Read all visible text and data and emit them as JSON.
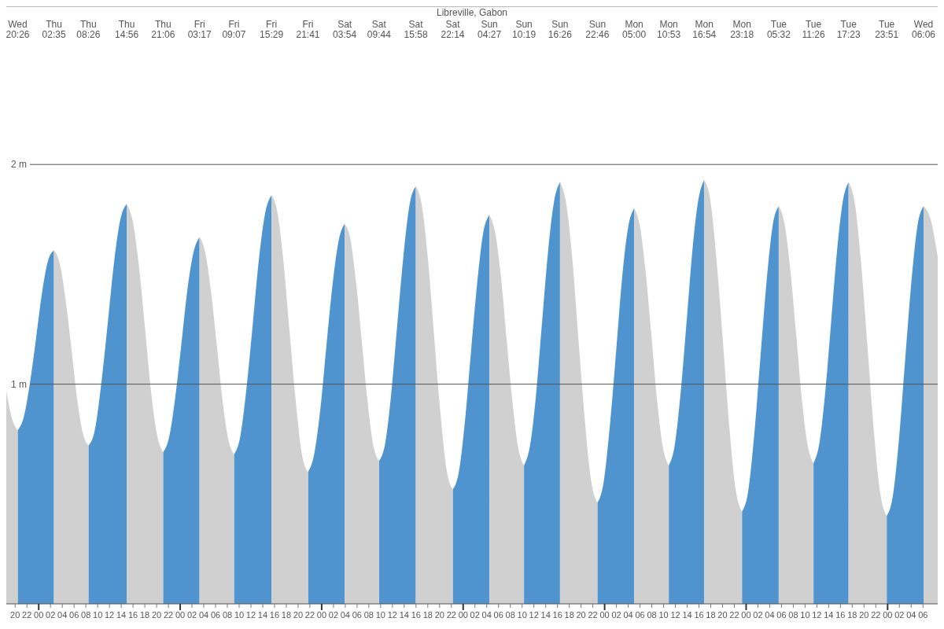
{
  "chart_data": {
    "type": "area",
    "title": "Libreville, Gabon",
    "x": [
      18.5,
      19.5,
      20.43,
      21.46,
      22.48,
      23.51,
      24.53,
      25.56,
      26.58,
      27.56,
      28.53,
      29.51,
      30.48,
      31.46,
      32.43,
      33.51,
      34.6,
      35.68,
      36.76,
      37.85,
      38.93,
      39.96,
      40.99,
      42.02,
      43.04,
      44.07,
      45.1,
      46.13,
      47.16,
      48.19,
      49.22,
      50.25,
      51.28,
      52.25,
      53.23,
      54.2,
      55.17,
      56.15,
      57.12,
      58.18,
      59.24,
      60.3,
      61.36,
      62.42,
      63.48,
      64.51,
      65.55,
      66.58,
      67.61,
      68.65,
      69.68,
      70.72,
      71.75,
      72.79,
      73.83,
      74.86,
      75.9,
      76.87,
      77.85,
      78.82,
      79.79,
      80.76,
      81.73,
      82.77,
      83.81,
      84.85,
      85.89,
      86.93,
      87.97,
      89.01,
      90.06,
      91.1,
      92.14,
      93.19,
      94.23,
      95.27,
      96.3,
      97.34,
      98.38,
      99.41,
      100.45,
      101.43,
      102.41,
      103.39,
      104.36,
      105.34,
      106.32,
      107.34,
      108.36,
      109.38,
      110.39,
      111.41,
      112.43,
      113.49,
      114.55,
      115.6,
      116.66,
      117.71,
      118.77,
      119.81,
      120.85,
      121.89,
      122.92,
      123.96,
      125,
      125.98,
      126.96,
      127.94,
      128.92,
      129.9,
      130.88,
      131.88,
      132.89,
      133.89,
      134.89,
      135.9,
      136.9,
      137.97,
      139.03,
      140.1,
      141.17,
      142.23,
      143.3,
      144.34,
      145.38,
      146.42,
      147.45,
      148.49,
      149.53,
      150.51,
      151.5,
      152.48,
      153.46,
      154.45,
      155.43,
      156.42,
      157.41,
      158.41,
      159.4,
      160.39,
      161.38,
      162.46,
      163.54,
      164.62,
      165.69,
      166.77,
      167.85,
      168.89,
      169.93,
      170.98,
      172.02,
      173.06,
      174.1,
      175.3,
      176.5
    ],
    "series": [
      {
        "color": "#4f94cf",
        "values": [
          null,
          null,
          0.79,
          0.85,
          1.0,
          1.2,
          1.41,
          1.56,
          1.61,
          null,
          null,
          null,
          null,
          null,
          0.72,
          0.79,
          1.0,
          1.27,
          1.55,
          1.75,
          1.82,
          null,
          null,
          null,
          null,
          null,
          0.69,
          0.76,
          0.94,
          1.18,
          1.43,
          1.6,
          1.67,
          null,
          null,
          null,
          null,
          null,
          0.68,
          0.76,
          0.98,
          1.27,
          1.57,
          1.78,
          1.86,
          null,
          null,
          null,
          null,
          null,
          0.6,
          0.68,
          0.88,
          1.17,
          1.45,
          1.65,
          1.73,
          null,
          null,
          null,
          null,
          null,
          0.65,
          0.73,
          0.96,
          1.28,
          1.59,
          1.82,
          1.9,
          null,
          null,
          null,
          null,
          null,
          0.52,
          0.6,
          0.83,
          1.15,
          1.46,
          1.69,
          1.77,
          null,
          null,
          null,
          null,
          null,
          0.63,
          0.72,
          0.95,
          1.28,
          1.6,
          1.83,
          1.92,
          null,
          null,
          null,
          null,
          null,
          0.46,
          0.55,
          0.8,
          1.13,
          1.47,
          1.71,
          1.8,
          null,
          null,
          null,
          null,
          null,
          0.63,
          0.72,
          0.96,
          1.28,
          1.61,
          1.84,
          1.93,
          null,
          null,
          null,
          null,
          null,
          0.42,
          0.51,
          0.77,
          1.12,
          1.46,
          1.72,
          1.81,
          null,
          null,
          null,
          null,
          null,
          0.64,
          0.73,
          0.96,
          1.28,
          1.6,
          1.83,
          1.92,
          null,
          null,
          null,
          null,
          null,
          0.4,
          0.49,
          0.75,
          1.11,
          1.46,
          1.72,
          1.81,
          null,
          null
        ]
      },
      {
        "color": "#d0d0d0",
        "values": [
          0.97,
          0.84,
          0.79,
          null,
          null,
          null,
          null,
          null,
          1.61,
          1.55,
          1.39,
          1.17,
          0.94,
          0.78,
          0.72,
          null,
          null,
          null,
          null,
          null,
          1.82,
          1.74,
          1.54,
          1.26,
          0.97,
          0.77,
          0.69,
          null,
          null,
          null,
          null,
          null,
          1.67,
          1.6,
          1.42,
          1.18,
          0.93,
          0.75,
          0.68,
          null,
          null,
          null,
          null,
          null,
          1.86,
          1.78,
          1.55,
          1.23,
          0.92,
          0.68,
          0.6,
          null,
          null,
          null,
          null,
          null,
          1.73,
          1.66,
          1.46,
          1.19,
          0.92,
          0.72,
          0.65,
          null,
          null,
          null,
          null,
          null,
          1.9,
          1.81,
          1.56,
          1.21,
          0.87,
          0.61,
          0.52,
          null,
          null,
          null,
          null,
          null,
          1.77,
          1.69,
          1.49,
          1.2,
          0.92,
          0.71,
          0.63,
          null,
          null,
          null,
          null,
          null,
          1.92,
          1.82,
          1.56,
          1.19,
          0.83,
          0.56,
          0.46,
          null,
          null,
          null,
          null,
          null,
          1.8,
          1.72,
          1.51,
          1.22,
          0.92,
          0.71,
          0.63,
          null,
          null,
          null,
          null,
          null,
          1.93,
          1.83,
          1.55,
          1.18,
          0.8,
          0.52,
          0.42,
          null,
          null,
          null,
          null,
          null,
          1.81,
          1.73,
          1.52,
          1.23,
          0.93,
          0.72,
          0.64,
          null,
          null,
          null,
          null,
          null,
          1.92,
          1.82,
          1.54,
          1.16,
          0.78,
          0.5,
          0.4,
          null,
          null,
          null,
          null,
          null,
          1.81,
          1.75,
          1.58
        ]
      }
    ],
    "annotations": [
      "Wed 20:26",
      "Thu 02:35",
      "Thu 08:26",
      "Thu 14:56",
      "Thu 21:06",
      "Fri 03:17",
      "Fri 09:07",
      "Fri 15:29",
      "Fri 21:41",
      "Sat 03:54",
      "Sat 09:44",
      "Sat 15:58",
      "Sat 22:14",
      "Sun 04:27",
      "Sun 10:19",
      "Sun 16:26",
      "Sun 22:46",
      "Mon 05:00",
      "Mon 10:53",
      "Mon 16:54",
      "Mon 23:18",
      "Tue 05:32",
      "Tue 11:26",
      "Tue 17:23",
      "Tue 23:51",
      "Wed 06:06"
    ],
    "xlim": [
      18.5,
      176.5
    ],
    "xticks": [
      {
        "value": 20,
        "label": "20"
      },
      {
        "value": 22,
        "label": "22"
      },
      {
        "value": 24,
        "label": "00"
      },
      {
        "value": 26,
        "label": "02"
      },
      {
        "value": 28,
        "label": "04"
      },
      {
        "value": 30,
        "label": "06"
      },
      {
        "value": 32,
        "label": "08"
      },
      {
        "value": 34,
        "label": "10"
      },
      {
        "value": 36,
        "label": "12"
      },
      {
        "value": 38,
        "label": "14"
      },
      {
        "value": 40,
        "label": "16"
      },
      {
        "value": 42,
        "label": "18"
      },
      {
        "value": 44,
        "label": "20"
      },
      {
        "value": 46,
        "label": "22"
      },
      {
        "value": 48,
        "label": "00"
      },
      {
        "value": 50,
        "label": "02"
      },
      {
        "value": 52,
        "label": "04"
      },
      {
        "value": 54,
        "label": "06"
      },
      {
        "value": 56,
        "label": "08"
      },
      {
        "value": 58,
        "label": "10"
      },
      {
        "value": 60,
        "label": "12"
      },
      {
        "value": 62,
        "label": "14"
      },
      {
        "value": 64,
        "label": "16"
      },
      {
        "value": 66,
        "label": "18"
      },
      {
        "value": 68,
        "label": "20"
      },
      {
        "value": 70,
        "label": "22"
      },
      {
        "value": 72,
        "label": "00"
      },
      {
        "value": 74,
        "label": "02"
      },
      {
        "value": 76,
        "label": "04"
      },
      {
        "value": 78,
        "label": "06"
      },
      {
        "value": 80,
        "label": "08"
      },
      {
        "value": 82,
        "label": "10"
      },
      {
        "value": 84,
        "label": "12"
      },
      {
        "value": 86,
        "label": "14"
      },
      {
        "value": 88,
        "label": "16"
      },
      {
        "value": 90,
        "label": "18"
      },
      {
        "value": 92,
        "label": "20"
      },
      {
        "value": 94,
        "label": "22"
      },
      {
        "value": 96,
        "label": "00"
      },
      {
        "value": 98,
        "label": "02"
      },
      {
        "value": 100,
        "label": "04"
      },
      {
        "value": 102,
        "label": "06"
      },
      {
        "value": 104,
        "label": "08"
      },
      {
        "value": 106,
        "label": "10"
      },
      {
        "value": 108,
        "label": "12"
      },
      {
        "value": 110,
        "label": "14"
      },
      {
        "value": 112,
        "label": "16"
      },
      {
        "value": 114,
        "label": "18"
      },
      {
        "value": 116,
        "label": "20"
      },
      {
        "value": 118,
        "label": "22"
      },
      {
        "value": 120,
        "label": "00"
      },
      {
        "value": 122,
        "label": "02"
      },
      {
        "value": 124,
        "label": "04"
      },
      {
        "value": 126,
        "label": "06"
      },
      {
        "value": 128,
        "label": "08"
      },
      {
        "value": 130,
        "label": "10"
      },
      {
        "value": 132,
        "label": "12"
      },
      {
        "value": 134,
        "label": "14"
      },
      {
        "value": 136,
        "label": "16"
      },
      {
        "value": 138,
        "label": "18"
      },
      {
        "value": 140,
        "label": "20"
      },
      {
        "value": 142,
        "label": "22"
      },
      {
        "value": 144,
        "label": "00"
      },
      {
        "value": 146,
        "label": "02"
      },
      {
        "value": 148,
        "label": "04"
      },
      {
        "value": 150,
        "label": "06"
      },
      {
        "value": 152,
        "label": "08"
      },
      {
        "value": 154,
        "label": "10"
      },
      {
        "value": 156,
        "label": "12"
      },
      {
        "value": 158,
        "label": "14"
      },
      {
        "value": 160,
        "label": "16"
      },
      {
        "value": 162,
        "label": "18"
      },
      {
        "value": 164,
        "label": "20"
      },
      {
        "value": 166,
        "label": "22"
      },
      {
        "value": 168,
        "label": "00"
      },
      {
        "value": 170,
        "label": "02"
      },
      {
        "value": 172,
        "label": "04"
      },
      {
        "value": 174,
        "label": "06"
      }
    ],
    "ylim": [
      0,
      2.72
    ],
    "yticks": [
      {
        "value": 1,
        "label": "1 m"
      },
      {
        "value": 2,
        "label": "2 m"
      }
    ],
    "grid": "y"
  }
}
